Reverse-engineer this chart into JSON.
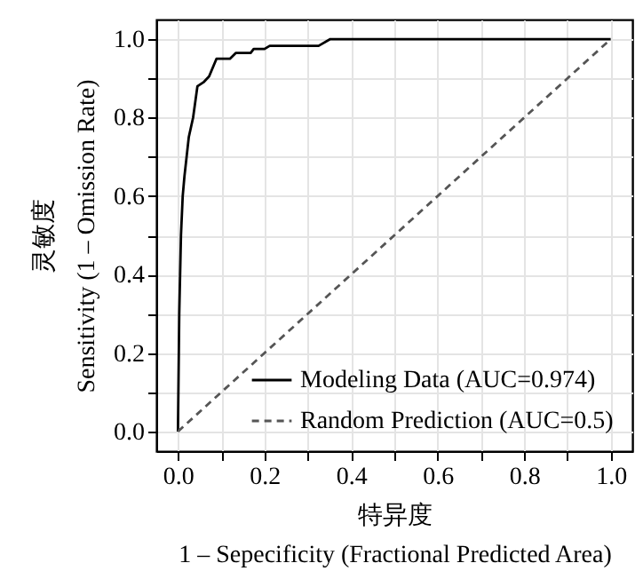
{
  "chart_data": {
    "type": "line",
    "xlabel": "特异度\n1 – Sepecificity (Fractional Predicted Area)",
    "ylabel": "灵敏度\nSensitivity (1 – Omission Rate)",
    "xlim": [
      -0.05,
      1.05
    ],
    "ylim": [
      -0.05,
      1.05
    ],
    "xticks": [
      {
        "value": 0,
        "label": "0.0"
      },
      {
        "value": 0.1,
        "label": null
      },
      0.2,
      {
        "value": 0.3,
        "label": null
      },
      0.4,
      {
        "value": 0.5,
        "label": null
      },
      0.6,
      {
        "value": 0.7,
        "label": null
      },
      0.8,
      {
        "value": 0.9,
        "label": null
      },
      {
        "value": 1,
        "label": "1.0"
      }
    ],
    "yticks": [
      {
        "value": 0,
        "label": "0.0"
      },
      {
        "value": 0.1,
        "label": null
      },
      0.2,
      {
        "value": 0.3,
        "label": null
      },
      0.4,
      {
        "value": 0.5,
        "label": null
      },
      0.6,
      {
        "value": 0.7,
        "label": null
      },
      0.8,
      {
        "value": 0.9,
        "label": null
      },
      {
        "value": 1,
        "label": "1.0"
      }
    ],
    "grid": true,
    "legend": "bottom right",
    "marker": "none",
    "series": [
      {
        "name": "Modeling Data (AUC=0.974)",
        "color": "#000000",
        "line_style": "solid",
        "x": [
          0,
          0.003,
          0.007,
          0.011,
          0.015,
          0.025,
          0.035,
          0.045,
          0.059,
          0.072,
          0.089,
          0.12,
          0.134,
          0.168,
          0.175,
          0.2,
          0.212,
          0.325,
          0.352,
          1
        ],
        "values": [
          0,
          0.3,
          0.5,
          0.6,
          0.65,
          0.75,
          0.8,
          0.88,
          0.89,
          0.905,
          0.95,
          0.95,
          0.965,
          0.965,
          0.975,
          0.975,
          0.983,
          0.983,
          1,
          1
        ]
      },
      {
        "name": "Random Prediction (AUC=0.5)",
        "color": "#555555",
        "line_style": "dashed",
        "x": [
          0,
          1
        ],
        "values": [
          0,
          1
        ]
      }
    ]
  }
}
